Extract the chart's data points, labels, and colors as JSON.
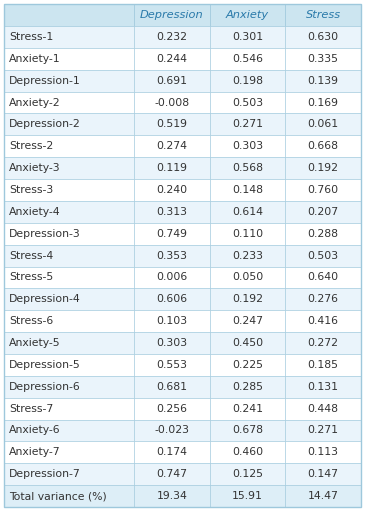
{
  "col_headers": [
    "",
    "Depression",
    "Anxiety",
    "Stress"
  ],
  "rows": [
    [
      "Stress-1",
      "0.232",
      "0.301",
      "0.630"
    ],
    [
      "Anxiety-1",
      "0.244",
      "0.546",
      "0.335"
    ],
    [
      "Depression-1",
      "0.691",
      "0.198",
      "0.139"
    ],
    [
      "Anxiety-2",
      "-0.008",
      "0.503",
      "0.169"
    ],
    [
      "Depression-2",
      "0.519",
      "0.271",
      "0.061"
    ],
    [
      "Stress-2",
      "0.274",
      "0.303",
      "0.668"
    ],
    [
      "Anxiety-3",
      "0.119",
      "0.568",
      "0.192"
    ],
    [
      "Stress-3",
      "0.240",
      "0.148",
      "0.760"
    ],
    [
      "Anxiety-4",
      "0.313",
      "0.614",
      "0.207"
    ],
    [
      "Depression-3",
      "0.749",
      "0.110",
      "0.288"
    ],
    [
      "Stress-4",
      "0.353",
      "0.233",
      "0.503"
    ],
    [
      "Stress-5",
      "0.006",
      "0.050",
      "0.640"
    ],
    [
      "Depression-4",
      "0.606",
      "0.192",
      "0.276"
    ],
    [
      "Stress-6",
      "0.103",
      "0.247",
      "0.416"
    ],
    [
      "Anxiety-5",
      "0.303",
      "0.450",
      "0.272"
    ],
    [
      "Depression-5",
      "0.553",
      "0.225",
      "0.185"
    ],
    [
      "Depression-6",
      "0.681",
      "0.285",
      "0.131"
    ],
    [
      "Stress-7",
      "0.256",
      "0.241",
      "0.448"
    ],
    [
      "Anxiety-6",
      "-0.023",
      "0.678",
      "0.271"
    ],
    [
      "Anxiety-7",
      "0.174",
      "0.460",
      "0.113"
    ],
    [
      "Depression-7",
      "0.747",
      "0.125",
      "0.147"
    ],
    [
      "Total variance (%)",
      "19.34",
      "15.91",
      "14.47"
    ]
  ],
  "header_bg": "#cce5f0",
  "row_bg_odd": "#eaf4fb",
  "row_bg_even": "#ffffff",
  "last_row_bg": "#ddeef7",
  "border_color": "#9ec8dc",
  "text_color": "#333333",
  "header_text_color": "#2a7aaa",
  "row_label_color": "#333333",
  "font_size": 7.8,
  "header_font_size": 8.2,
  "fig_width": 3.65,
  "fig_height": 5.11,
  "dpi": 100
}
